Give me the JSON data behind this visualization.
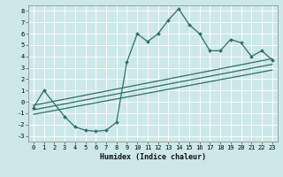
{
  "xlabel": "Humidex (Indice chaleur)",
  "background_color": "#cde8e8",
  "grid_color": "#ffffff",
  "line_color": "#2e6e6a",
  "xlim": [
    -0.5,
    23.5
  ],
  "ylim": [
    -3.5,
    8.5
  ],
  "xtick_vals": [
    0,
    1,
    2,
    3,
    4,
    5,
    6,
    7,
    8,
    9,
    10,
    11,
    12,
    13,
    14,
    15,
    16,
    17,
    18,
    19,
    20,
    21,
    22,
    23
  ],
  "ytick_vals": [
    -3,
    -2,
    -1,
    0,
    1,
    2,
    3,
    4,
    5,
    6,
    7,
    8
  ],
  "main_x": [
    0,
    1,
    3,
    4,
    5,
    6,
    7,
    8,
    9,
    10,
    11,
    12,
    13,
    14,
    15,
    16,
    17,
    18,
    19,
    20,
    21,
    22,
    23
  ],
  "main_y": [
    -0.5,
    1.0,
    -1.3,
    -2.2,
    -2.5,
    -2.6,
    -2.5,
    -1.8,
    3.5,
    6.0,
    5.3,
    6.0,
    7.2,
    8.2,
    6.8,
    6.0,
    4.5,
    4.5,
    5.5,
    5.2,
    4.0,
    4.5,
    3.7
  ],
  "line1_x": [
    0,
    23
  ],
  "line1_y": [
    -0.3,
    3.8
  ],
  "line2_x": [
    0,
    23
  ],
  "line2_y": [
    -0.7,
    3.3
  ],
  "line3_x": [
    0,
    23
  ],
  "line3_y": [
    -1.1,
    2.8
  ]
}
